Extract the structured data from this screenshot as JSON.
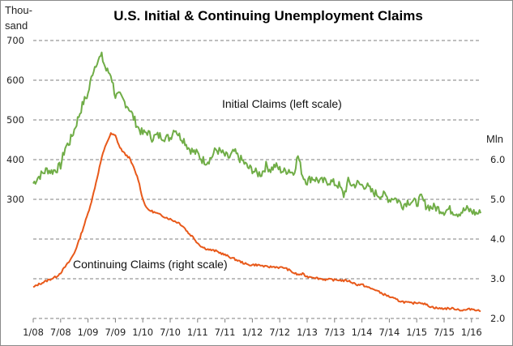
{
  "chart_data": {
    "type": "line",
    "title": "U.S. Initial & Continuing Unemployment Claims",
    "left_axis": {
      "unit_label": [
        "Thou-",
        "sand"
      ],
      "ticks": [
        {
          "value": 700,
          "label": "700"
        },
        {
          "value": 600,
          "label": "600"
        },
        {
          "value": 500,
          "label": "500"
        },
        {
          "value": 400,
          "label": "400"
        },
        {
          "value": 300,
          "label": "300"
        },
        {
          "value": 200,
          "label": ""
        },
        {
          "value": 100,
          "label": ""
        }
      ],
      "range": [
        0,
        700
      ]
    },
    "right_axis": {
      "unit_label": "Mln",
      "ticks": [
        {
          "value": 6.0,
          "label": "6.0"
        },
        {
          "value": 5.0,
          "label": "5.0"
        },
        {
          "value": 4.0,
          "label": "4.0"
        },
        {
          "value": 3.0,
          "label": "3.0"
        },
        {
          "value": 2.0,
          "label": "2.0"
        }
      ],
      "range": [
        2.0,
        8.0
      ]
    },
    "x_axis": {
      "start": "2008-01",
      "tick_labels": [
        "1/08",
        "7/08",
        "1/09",
        "7/09",
        "1/10",
        "7/10",
        "1/11",
        "7/11",
        "1/12",
        "7/12",
        "1/13",
        "7/13",
        "1/14",
        "7/14",
        "1/15",
        "7/15",
        "1/16"
      ],
      "tick_interval_months": 6
    },
    "grid": true,
    "annotations": [
      {
        "text": "Initial Claims (left scale)",
        "series": "Initial Claims"
      },
      {
        "text": "Continuing Claims (right scale)",
        "series": "Continuing Claims"
      }
    ],
    "x_months_from_start": "monthly, index 0 = Jan 2008",
    "series": [
      {
        "name": "Initial Claims",
        "axis": "left",
        "unit": "thousand",
        "color": "#70ad47",
        "values": [
          340,
          355,
          365,
          375,
          370,
          375,
          385,
          430,
          445,
          475,
          510,
          545,
          565,
          620,
          650,
          660,
          625,
          615,
          560,
          560,
          545,
          530,
          505,
          480,
          465,
          470,
          455,
          460,
          460,
          455,
          455,
          480,
          460,
          450,
          430,
          420,
          415,
          400,
          395,
          405,
          425,
          420,
          410,
          405,
          420,
          405,
          395,
          380,
          375,
          365,
          365,
          385,
          375,
          385,
          375,
          370,
          375,
          365,
          410,
          360,
          345,
          355,
          350,
          345,
          345,
          345,
          340,
          335,
          310,
          345,
          335,
          340,
          335,
          335,
          320,
          315,
          310,
          310,
          300,
          305,
          295,
          285,
          295,
          295,
          290,
          305,
          285,
          280,
          280,
          275,
          270,
          275,
          270,
          265,
          270,
          275,
          270,
          265,
          265
        ]
      },
      {
        "name": "Continuing Claims",
        "axis": "right",
        "unit": "million",
        "color": "#e8591a",
        "values": [
          2.78,
          2.85,
          2.9,
          2.95,
          3.0,
          3.05,
          3.15,
          3.3,
          3.45,
          3.65,
          3.95,
          4.3,
          4.65,
          5.05,
          5.55,
          6.05,
          6.4,
          6.65,
          6.6,
          6.3,
          6.15,
          6.05,
          5.8,
          5.5,
          5.0,
          4.75,
          4.7,
          4.65,
          4.6,
          4.55,
          4.5,
          4.45,
          4.4,
          4.3,
          4.15,
          4.05,
          3.9,
          3.8,
          3.75,
          3.72,
          3.7,
          3.65,
          3.6,
          3.55,
          3.5,
          3.45,
          3.4,
          3.35,
          3.35,
          3.35,
          3.33,
          3.3,
          3.3,
          3.3,
          3.28,
          3.28,
          3.22,
          3.15,
          3.1,
          3.12,
          3.05,
          3.05,
          3.02,
          3.0,
          2.98,
          2.98,
          2.97,
          2.97,
          2.95,
          2.95,
          2.9,
          2.85,
          2.85,
          2.8,
          2.75,
          2.72,
          2.65,
          2.6,
          2.55,
          2.5,
          2.45,
          2.42,
          2.4,
          2.38,
          2.4,
          2.4,
          2.35,
          2.3,
          2.27,
          2.25,
          2.25,
          2.25,
          2.25,
          2.23,
          2.2,
          2.22,
          2.24,
          2.22,
          2.18
        ]
      }
    ]
  }
}
